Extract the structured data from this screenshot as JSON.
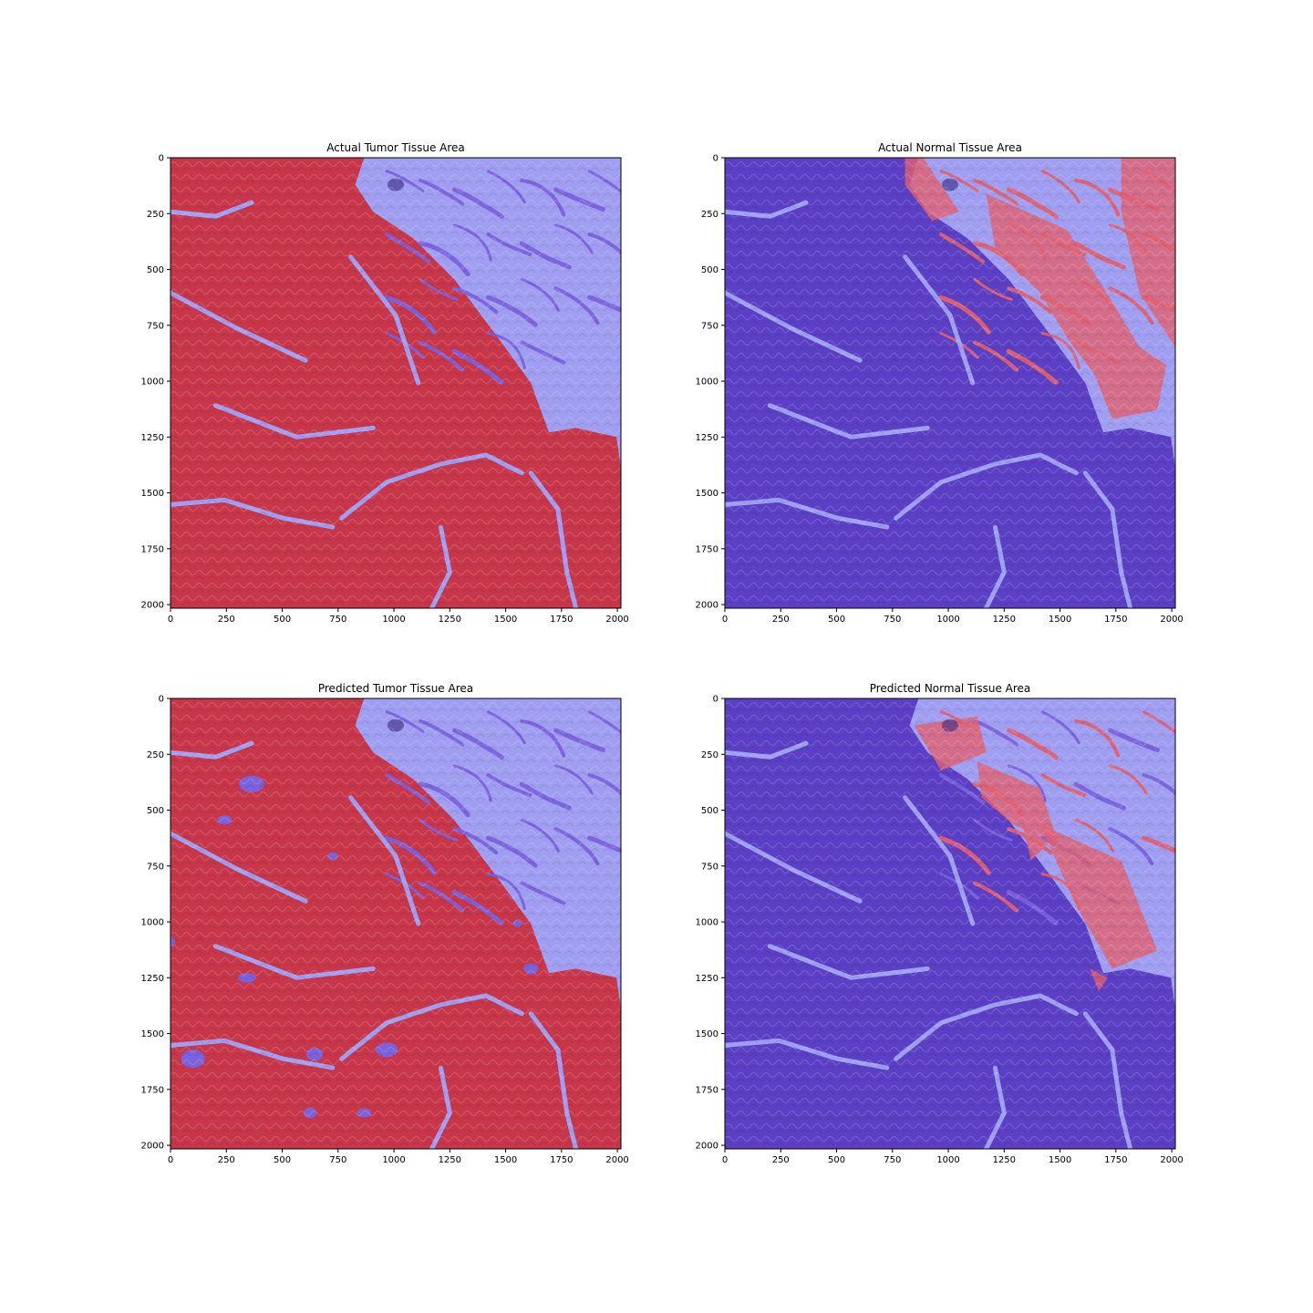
{
  "figure": {
    "background": "#ffffff",
    "overlay_colors": {
      "highlighted_region": "#c8364a",
      "highlighted_region_light": "#e06070",
      "background_region": "#9f9ef0",
      "background_region_dark": "#5b3fc4",
      "background_region_mid": "#7a62dc"
    }
  },
  "chart_data": [
    {
      "type": "image",
      "title": "Actual Tumor Tissue Area",
      "highlight": "tumor",
      "xticks": [
        0,
        250,
        500,
        750,
        1000,
        1250,
        1500,
        1750,
        2000
      ],
      "yticks": [
        0,
        250,
        500,
        750,
        1000,
        1250,
        1500,
        1750,
        2000
      ],
      "xlim": [
        0,
        2016
      ],
      "ylim": [
        2016,
        0
      ]
    },
    {
      "type": "image",
      "title": "Actual Normal Tissue Area",
      "highlight": "normal",
      "xticks": [
        0,
        250,
        500,
        750,
        1000,
        1250,
        1500,
        1750,
        2000
      ],
      "yticks": [
        0,
        250,
        500,
        750,
        1000,
        1250,
        1500,
        1750,
        2000
      ],
      "xlim": [
        0,
        2016
      ],
      "ylim": [
        2016,
        0
      ]
    },
    {
      "type": "image",
      "title": "Predicted Tumor Tissue Area",
      "highlight": "tumor",
      "xticks": [
        0,
        250,
        500,
        750,
        1000,
        1250,
        1500,
        1750,
        2000
      ],
      "yticks": [
        0,
        250,
        500,
        750,
        1000,
        1250,
        1500,
        1750,
        2000
      ],
      "xlim": [
        0,
        2016
      ],
      "ylim": [
        2016,
        0
      ]
    },
    {
      "type": "image",
      "title": "Predicted Normal Tissue Area",
      "highlight": "normal",
      "xticks": [
        0,
        250,
        500,
        750,
        1000,
        1250,
        1500,
        1750,
        2000
      ],
      "yticks": [
        0,
        250,
        500,
        750,
        1000,
        1250,
        1500,
        1750,
        2000
      ],
      "xlim": [
        0,
        2016
      ],
      "ylim": [
        2016,
        0
      ]
    }
  ]
}
